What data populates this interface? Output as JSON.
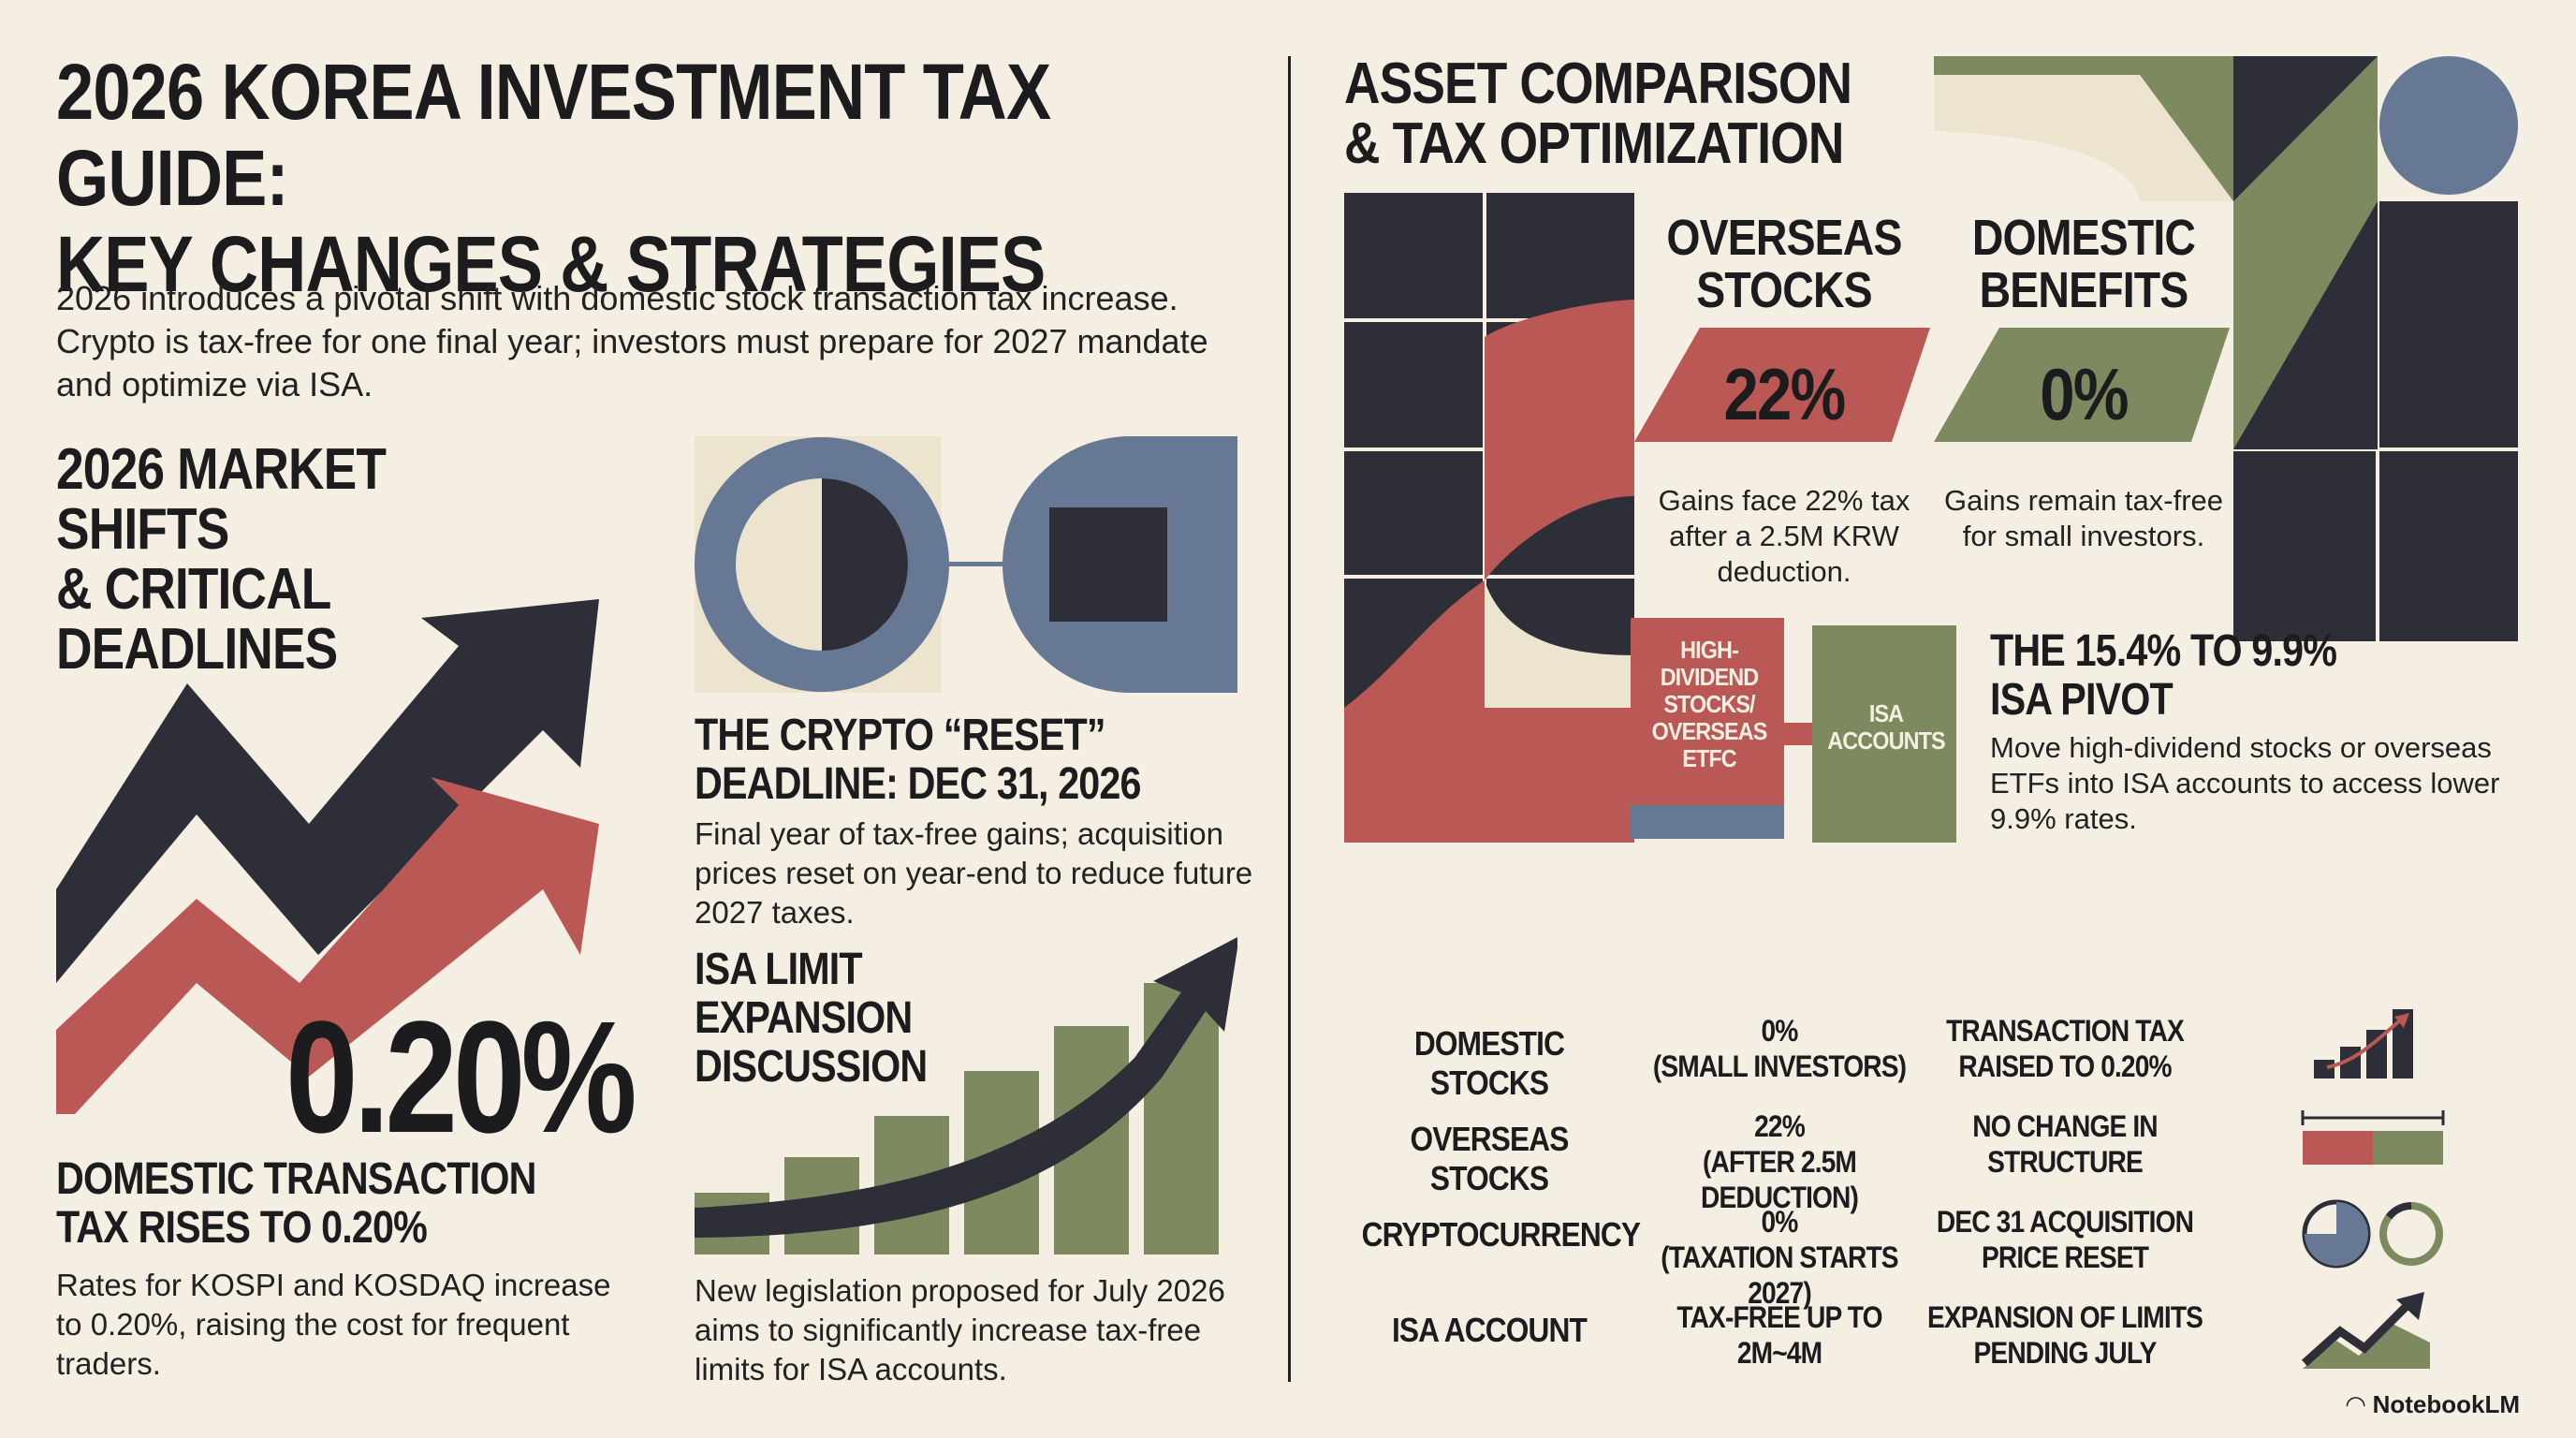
{
  "header": {
    "title_line1": "2026 KOREA INVESTMENT TAX GUIDE:",
    "title_line2": "KEY CHANGES & STRATEGIES",
    "intro": "2026 introduces a pivotal shift with domestic stock transaction tax increase. Crypto is tax-free for one final year; investors must prepare for 2027 mandate and optimize via ISA."
  },
  "left": {
    "section_line1": "2026 MARKET SHIFTS",
    "section_line2": "& CRITICAL DEADLINES",
    "big_rate": "0.20%",
    "domestic_title_line1": "DOMESTIC TRANSACTION",
    "domestic_title_line2": "TAX RISES TO 0.20%",
    "domestic_body": "Rates for KOSPI and KOSDAQ increase to 0.20%, raising the cost for frequent traders.",
    "crypto_title_line1": "THE CRYPTO “RESET”",
    "crypto_title_line2": "DEADLINE: DEC 31, 2026",
    "crypto_body": "Final year of tax-free gains; acquisition prices reset on year-end to reduce future 2027 taxes.",
    "isa_title_line1": "ISA LIMIT",
    "isa_title_line2": "EXPANSION",
    "isa_title_line3": "DISCUSSION",
    "isa_body": "New legislation proposed for July 2026 aims to significantly increase tax-free limits for ISA accounts."
  },
  "right": {
    "section_line1": "ASSET COMPARISON",
    "section_line2": "& TAX OPTIMIZATION",
    "overseas_label_line1": "OVERSEAS",
    "overseas_label_line2": "STOCKS",
    "overseas_rate": "22%",
    "overseas_note": "Gains face 22% tax after a 2.5M KRW deduction.",
    "domestic_label_line1": "DOMESTIC",
    "domestic_label_line2": "BENEFITS",
    "domestic_rate": "0%",
    "domestic_note": "Gains remain tax-free for small investors.",
    "box_dividend": "HIGH-DIVIDEND STOCKS/ OVERSEAS ETFc",
    "box_isa": "ISA ACCOUNTS",
    "pivot_line1": "THE 15.4% TO 9.9%",
    "pivot_line2": "ISA PIVOT",
    "pivot_body": "Move high-dividend stocks or overseas ETFs into ISA accounts to access lower 9.9% rates."
  },
  "table": {
    "rows": [
      {
        "asset": "DOMESTIC STOCKS",
        "rate_line1": "0%",
        "rate_line2": "(SMALL INVESTORS)",
        "change_line1": "TRANSACTION TAX",
        "change_line2": "RAISED TO 0.20%",
        "icon": "rising-bars-icon"
      },
      {
        "asset": "OVERSEAS STOCKS",
        "rate_line1": "22%",
        "rate_line2": "(AFTER 2.5M DEDUCTION)",
        "change_line1": "NO CHANGE IN",
        "change_line2": "STRUCTURE",
        "icon": "split-bar-icon"
      },
      {
        "asset": "CRYPTOCURRENCY",
        "rate_line1": "0%",
        "rate_line2": "(TAXATION STARTS 2027)",
        "change_line1": "DEC 31 ACQUISITION",
        "change_line2": "PRICE RESET",
        "icon": "reset-circle-icon"
      },
      {
        "asset": "ISA ACCOUNT",
        "rate_line1": "TAX-FREE UP TO",
        "rate_line2": "2M~4M",
        "change_line1": "EXPANSION OF LIMITS",
        "change_line2": "PENDING JULY",
        "icon": "growth-arrow-icon"
      }
    ]
  },
  "footer": {
    "brand": "NotebookLM"
  },
  "colors": {
    "red": "#b95855",
    "green": "#7d8a5f",
    "blue": "#667893",
    "dark": "#2d2e37",
    "cream": "#f4efe2",
    "beige": "#ece4ce"
  }
}
